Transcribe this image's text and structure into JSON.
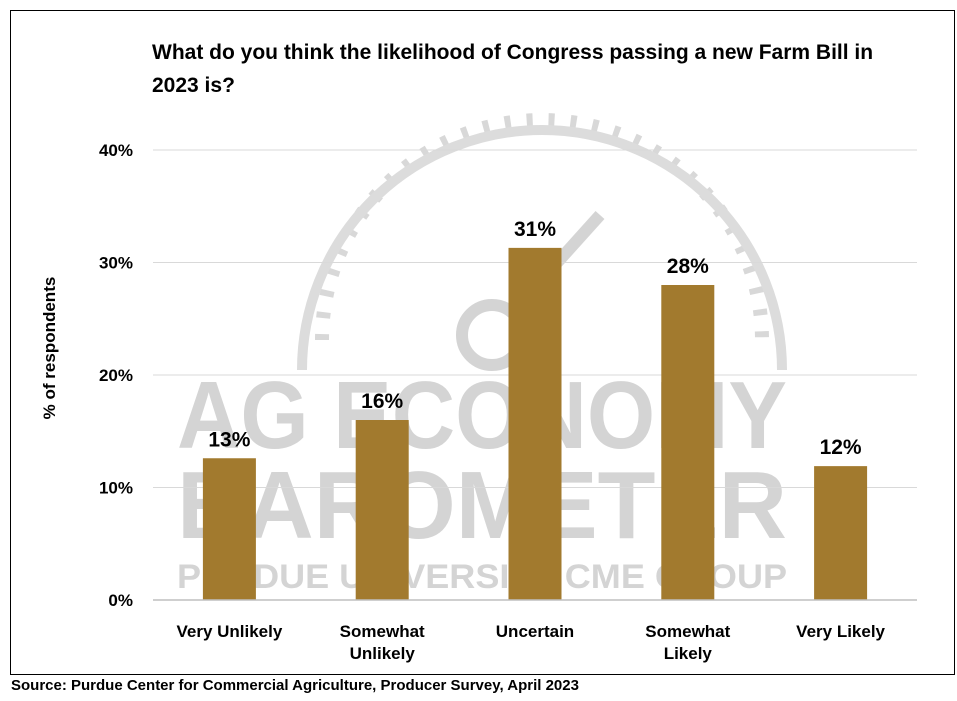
{
  "chart_data": {
    "type": "bar",
    "title": "What do you think the likelihood of Congress passing a new Farm Bill in 2023 is?",
    "ylabel": "% of respondents",
    "xlabel": "",
    "categories": [
      "Very Unlikely",
      "Somewhat Unlikely",
      "Uncertain",
      "Somewhat Likely",
      "Very Likely"
    ],
    "category_lines": [
      [
        "Very Unlikely"
      ],
      [
        "Somewhat",
        "Unlikely"
      ],
      [
        "Uncertain"
      ],
      [
        "Somewhat",
        "Likely"
      ],
      [
        "Very Likely"
      ]
    ],
    "values": [
      12.6,
      16.0,
      31.3,
      28.0,
      11.9
    ],
    "data_labels": [
      "13%",
      "16%",
      "31%",
      "28%",
      "12%"
    ],
    "ylim": [
      0,
      40
    ],
    "yticks": [
      0,
      10,
      20,
      30,
      40
    ],
    "ytick_labels": [
      "0%",
      "10%",
      "20%",
      "30%",
      "40%"
    ],
    "grid": true,
    "legend": "none",
    "bar_color": "#a27a2e",
    "source": "Source: Purdue Center for Commercial Agriculture, Producer Survey, April 2023"
  },
  "watermark": {
    "line1": "AG ECONOMY",
    "line2": "BAROMETER",
    "line3": "PURDUE UNIVERSITY  CME GROUP",
    "color": "#d4d4d4"
  }
}
